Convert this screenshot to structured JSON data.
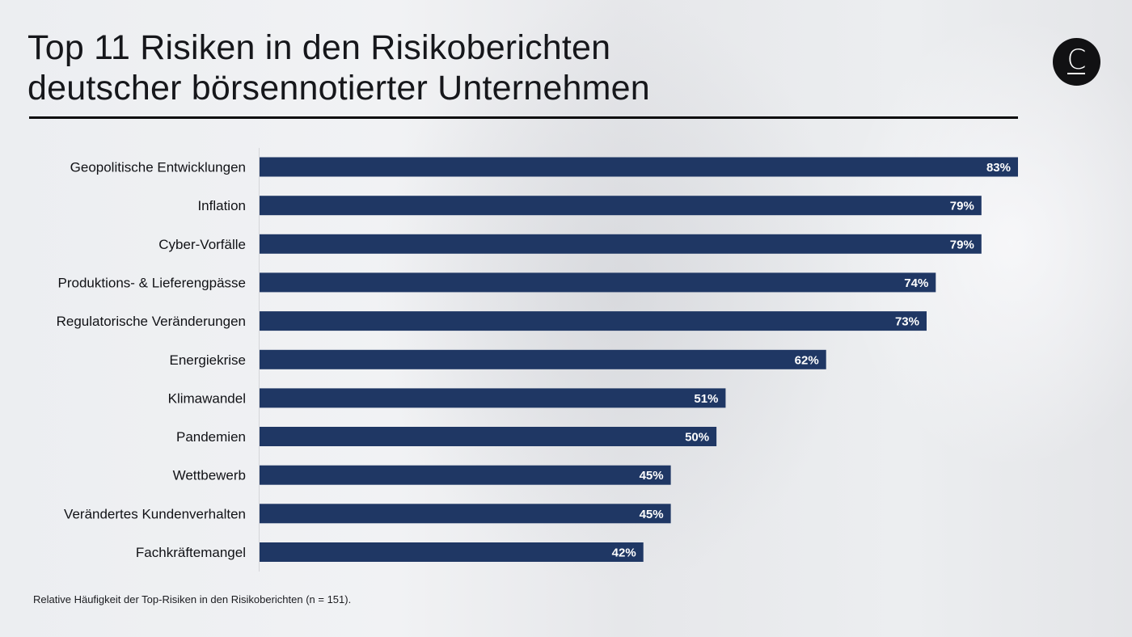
{
  "header": {
    "title_line1": "Top 11 Risiken in den Risikoberichten",
    "title_line2": "deutscher börsennotierter Unternehmen",
    "logo_letter": "C",
    "logo_icon": "brand-circle-c-logo"
  },
  "footnote": "Relative Häufigkeit der Top-Risiken in den Risikoberichten (n = 151).",
  "colors": {
    "bar": "#1f3764",
    "bar_label": "#ffffff",
    "category_label": "#111216",
    "axis": "#d4d5d9"
  },
  "chart_data": {
    "type": "bar",
    "orientation": "horizontal",
    "title": "Top 11 Risiken in den Risikoberichten deutscher börsennotierter Unternehmen",
    "xlabel": "",
    "ylabel": "",
    "unit": "%",
    "xlim": [
      0,
      100
    ],
    "grid": false,
    "legend": "none",
    "categories": [
      "Geopolitische Entwicklungen",
      "Inflation",
      "Cyber-Vorfälle",
      "Produktions- & Lieferengpässe",
      "Regulatorische Veränderungen",
      "Energiekrise",
      "Klimawandel",
      "Pandemien",
      "Wettbewerb",
      "Verändertes Kundenverhalten",
      "Fachkräftemangel"
    ],
    "values": [
      83,
      79,
      79,
      74,
      73,
      62,
      51,
      50,
      45,
      45,
      42
    ],
    "data_labels": [
      "83%",
      "79%",
      "79%",
      "74%",
      "73%",
      "62%",
      "51%",
      "50%",
      "45%",
      "45%",
      "42%"
    ],
    "note": "Relative Häufigkeit der Top-Risiken in den Risikoberichten (n = 151)."
  }
}
